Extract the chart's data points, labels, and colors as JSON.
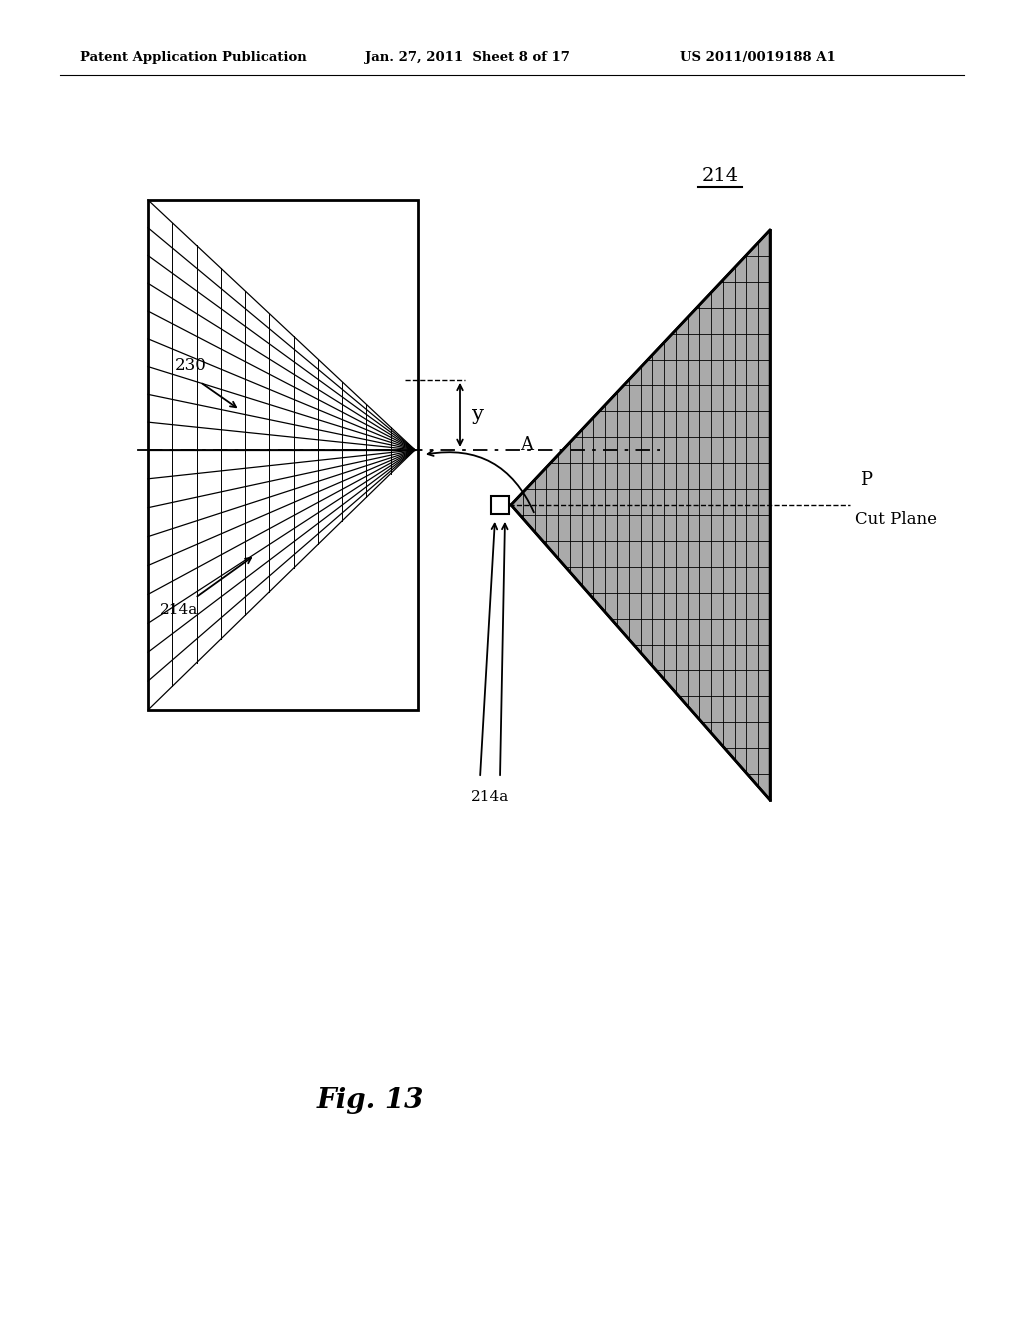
{
  "bg_color": "#ffffff",
  "header_left": "Patent Application Publication",
  "header_mid": "Jan. 27, 2011  Sheet 8 of 17",
  "header_right": "US 2011/0019188 A1",
  "fig_label": "Fig. 13",
  "label_214": "214",
  "label_230": "230",
  "label_214a_left": "214a",
  "label_214a_bottom": "214a",
  "label_y": "y",
  "label_A": "A",
  "label_P": "P",
  "label_cut": "Cut Plane"
}
